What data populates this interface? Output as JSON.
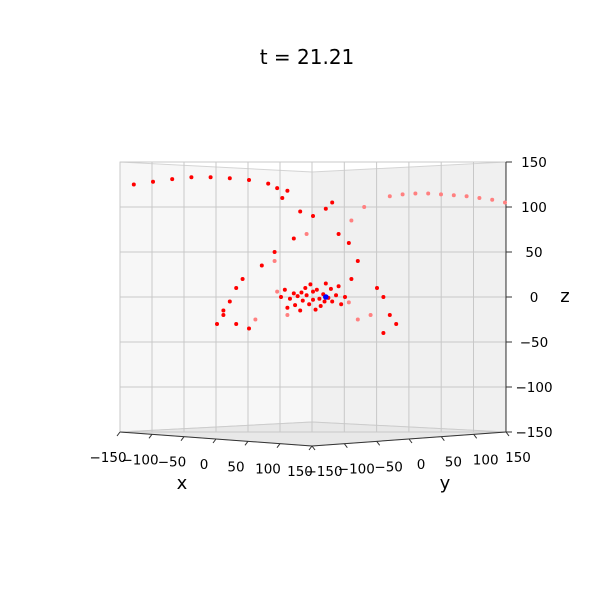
{
  "chart_data": {
    "type": "scatter",
    "projection": "3d",
    "title": "t = 21.21",
    "xlabel": "x",
    "ylabel": "y",
    "zlabel": "z",
    "xlim": [
      -150,
      150
    ],
    "ylim": [
      -150,
      150
    ],
    "zlim": [
      -150,
      150
    ],
    "x_ticks": [
      "−150",
      "−100",
      "−50",
      "0",
      "50",
      "100",
      "150"
    ],
    "y_ticks": [
      "−150",
      "−100",
      "−50",
      "0",
      "50",
      "100",
      "150"
    ],
    "z_ticks": [
      "−150",
      "−100",
      "−50",
      "0",
      "50",
      "100",
      "150"
    ],
    "grid": true,
    "view": {
      "elevation": 0,
      "azimuth": -45
    },
    "series": [
      {
        "color": "#ff0000",
        "marker": "dot",
        "points": [
          [
            -140,
            -140,
            125
          ],
          [
            -125,
            -125,
            128
          ],
          [
            -110,
            -110,
            131
          ],
          [
            -95,
            -95,
            133
          ],
          [
            -80,
            -80,
            133
          ],
          [
            -65,
            -65,
            132
          ],
          [
            -50,
            -50,
            130
          ],
          [
            -35,
            -35,
            126
          ],
          [
            -28,
            -28,
            121
          ],
          [
            -20,
            -20,
            118
          ],
          [
            -24,
            -24,
            110
          ],
          [
            -10,
            -10,
            95
          ],
          [
            0,
            0,
            90
          ],
          [
            10,
            10,
            98
          ],
          [
            15,
            15,
            105
          ],
          [
            20,
            20,
            70
          ],
          [
            28,
            28,
            60
          ],
          [
            35,
            35,
            40
          ],
          [
            30,
            30,
            20
          ],
          [
            -15,
            -15,
            65
          ],
          [
            -30,
            -30,
            50
          ],
          [
            -40,
            -40,
            35
          ],
          [
            -55,
            -55,
            20
          ],
          [
            -60,
            -60,
            10
          ],
          [
            -65,
            -65,
            -5
          ],
          [
            -70,
            -70,
            -15
          ],
          [
            -75,
            -75,
            -30
          ],
          [
            -70,
            -70,
            -20
          ],
          [
            -60,
            -60,
            -30
          ],
          [
            -50,
            -50,
            -35
          ],
          [
            50,
            50,
            10
          ],
          [
            55,
            55,
            0
          ],
          [
            60,
            60,
            -20
          ],
          [
            65,
            65,
            -30
          ],
          [
            55,
            55,
            -40
          ],
          [
            -5,
            -5,
            2
          ],
          [
            5,
            5,
            -2
          ],
          [
            0,
            0,
            6
          ],
          [
            -8,
            -8,
            -4
          ],
          [
            8,
            8,
            3
          ],
          [
            -12,
            -12,
            1
          ],
          [
            12,
            12,
            -1
          ],
          [
            -3,
            -3,
            -8
          ],
          [
            3,
            3,
            8
          ],
          [
            -15,
            -15,
            4
          ],
          [
            15,
            15,
            -5
          ],
          [
            -18,
            -18,
            -2
          ],
          [
            18,
            18,
            2
          ],
          [
            -6,
            -6,
            10
          ],
          [
            6,
            6,
            -10
          ],
          [
            -20,
            -20,
            -12
          ],
          [
            20,
            20,
            12
          ],
          [
            -25,
            -25,
            0
          ],
          [
            25,
            25,
            0
          ],
          [
            -10,
            -10,
            -15
          ],
          [
            10,
            10,
            15
          ],
          [
            -2,
            -2,
            14
          ],
          [
            2,
            2,
            -14
          ],
          [
            -22,
            -22,
            8
          ],
          [
            22,
            22,
            -8
          ],
          [
            -9,
            -9,
            5
          ],
          [
            9,
            9,
            -5
          ],
          [
            -14,
            -14,
            -9
          ],
          [
            14,
            14,
            9
          ],
          [
            0,
            0,
            -3
          ]
        ]
      },
      {
        "color": "#ff8080",
        "marker": "dot",
        "points": [
          [
            60,
            60,
            112
          ],
          [
            70,
            70,
            114
          ],
          [
            80,
            80,
            115
          ],
          [
            90,
            90,
            115
          ],
          [
            100,
            100,
            114
          ],
          [
            110,
            110,
            113
          ],
          [
            120,
            120,
            112
          ],
          [
            130,
            130,
            110
          ],
          [
            140,
            140,
            108
          ],
          [
            150,
            150,
            105
          ],
          [
            40,
            40,
            100
          ],
          [
            30,
            30,
            85
          ],
          [
            -5,
            -5,
            70
          ],
          [
            -30,
            -30,
            40
          ],
          [
            45,
            45,
            -20
          ],
          [
            35,
            35,
            -25
          ],
          [
            -45,
            -45,
            -25
          ],
          [
            -20,
            -20,
            -20
          ],
          [
            -28,
            -28,
            6
          ],
          [
            28,
            28,
            -6
          ]
        ]
      },
      {
        "color": "#0000ff",
        "marker": "dot",
        "points": [
          [
            10,
            10,
            0
          ]
        ]
      }
    ]
  }
}
